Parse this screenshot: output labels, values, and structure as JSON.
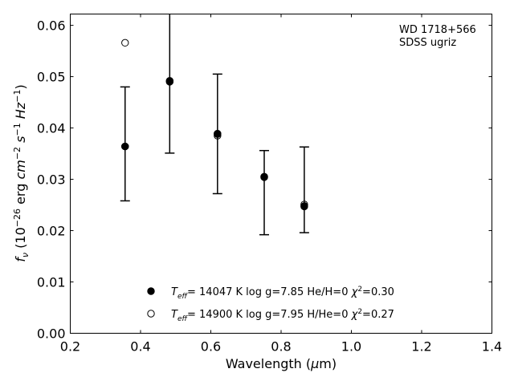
{
  "chart_data": {
    "type": "scatter",
    "annotation_lines": [
      "WD 1718+566",
      "SDSS ugriz"
    ],
    "xlabel": "Wavelength (μm)",
    "ylabel": "f_ν (10^-26 erg cm^-2 s^-1 Hz^-1)",
    "xlim": [
      0.2,
      1.4
    ],
    "ylim": [
      0.0,
      0.0622
    ],
    "xticks": [
      0.2,
      0.4,
      0.6,
      0.8,
      1.0,
      1.2,
      1.4
    ],
    "xtick_labels": [
      "0.2",
      "0.4",
      "0.6",
      "0.8",
      "1.0",
      "1.2",
      "1.4"
    ],
    "yticks": [
      0.0,
      0.01,
      0.02,
      0.03,
      0.04,
      0.05,
      0.06
    ],
    "ytick_labels": [
      "0.00",
      "0.01",
      "0.02",
      "0.03",
      "0.04",
      "0.05",
      "0.06"
    ],
    "grid": false,
    "legend_position": "lower-center",
    "observed": {
      "x": [
        0.356,
        0.483,
        0.619,
        0.752,
        0.866
      ],
      "y": [
        0.0364,
        0.0491,
        0.0389,
        0.0305,
        0.0247
      ],
      "err_low": [
        0.0258,
        0.0351,
        0.0272,
        0.0192,
        0.0196
      ],
      "err_high": [
        0.048,
        0.063,
        0.0505,
        0.0356,
        0.0363
      ]
    },
    "series": [
      {
        "name": "T_eff= 14047 K  log g=7.85  He/H=0  χ²=0.30",
        "marker": "filled-circle",
        "x": [
          0.356,
          0.483,
          0.619,
          0.752,
          0.866
        ],
        "y": [
          0.0364,
          0.049,
          0.0388,
          0.0304,
          0.0248
        ]
      },
      {
        "name": "T_eff= 14900 K  log g=7.95  H/He=0  χ²=0.27",
        "marker": "open-circle",
        "x": [
          0.356,
          0.483,
          0.619,
          0.752,
          0.866
        ],
        "y": [
          0.0566,
          0.0492,
          0.0385,
          0.0305,
          0.0251
        ]
      }
    ],
    "legend": [
      {
        "teff": "14047",
        "logg": "7.85",
        "comp": "He/H=0",
        "chi2": "=0.30"
      },
      {
        "teff": "14900",
        "logg": "7.95",
        "comp": "H/He=0",
        "chi2": "=0.27"
      }
    ]
  }
}
